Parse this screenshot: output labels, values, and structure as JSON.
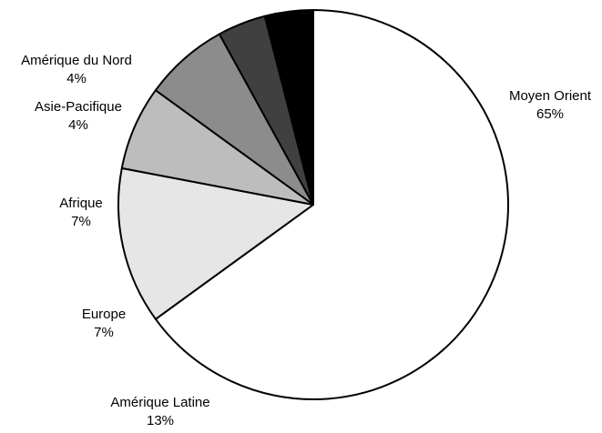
{
  "chart_data": {
    "type": "pie",
    "slices": [
      {
        "label": "Moyen Orient",
        "value_label": "65%",
        "value": 65,
        "color": "#ffffff"
      },
      {
        "label": "Amérique Latine",
        "value_label": "13%",
        "value": 13,
        "color": "#e6e6e6"
      },
      {
        "label": "Europe",
        "value_label": "7%",
        "value": 7,
        "color": "#bdbdbd"
      },
      {
        "label": "Afrique",
        "value_label": "7%",
        "value": 7,
        "color": "#8c8c8c"
      },
      {
        "label": "Asie-Pacifique",
        "value_label": "4%",
        "value": 4,
        "color": "#404040"
      },
      {
        "label": "Amérique du Nord",
        "value_label": "4%",
        "value": 4,
        "color": "#000000"
      }
    ],
    "start_angle_deg": 0,
    "direction": "clockwise",
    "legend": "none"
  }
}
